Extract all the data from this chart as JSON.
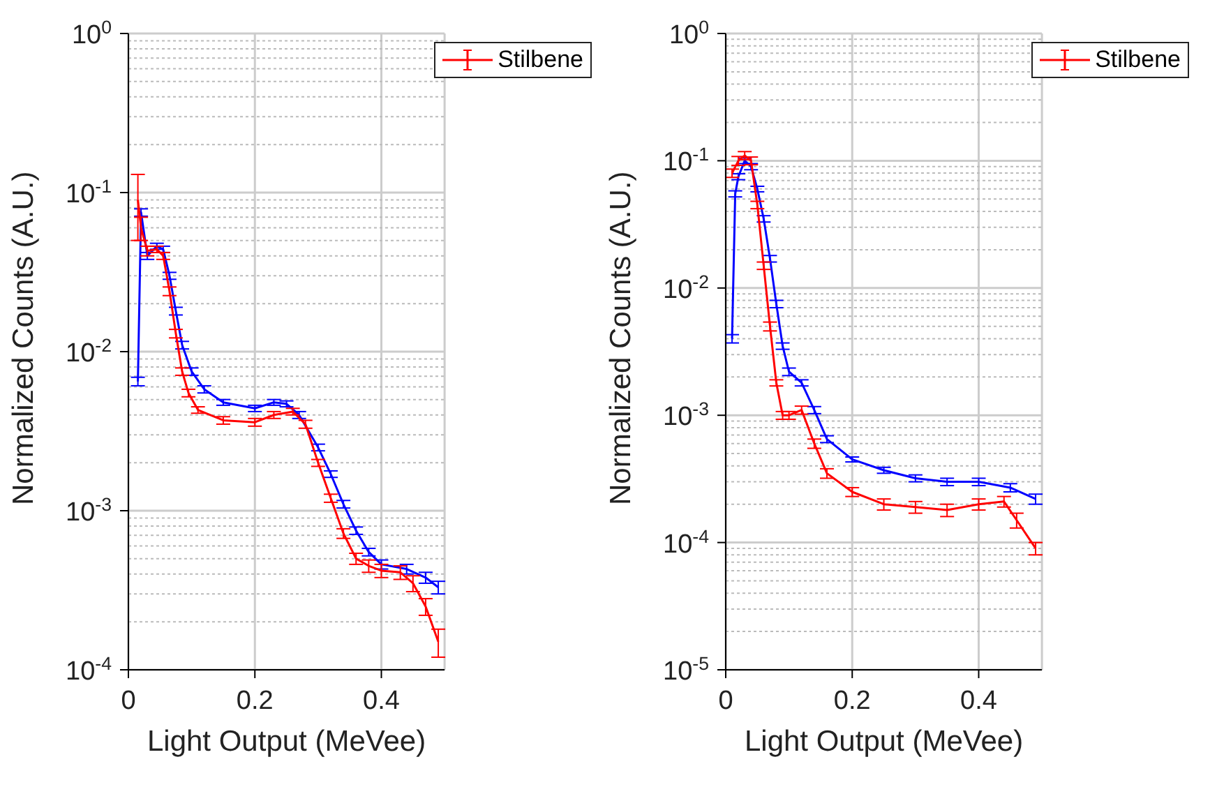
{
  "chart_data": [
    {
      "type": "line",
      "xlabel": "Light Output (MeVee)",
      "ylabel": "Normalized Counts (A.U.)",
      "log": "y",
      "grid": true,
      "legend": "top right",
      "marker": "none",
      "line_style": "solid",
      "xlim": [
        0,
        0.5
      ],
      "xticks": [
        0,
        0.2,
        0.4
      ],
      "ylim": [
        0.0001,
        1
      ],
      "yticks": [
        {
          "value": 0.0001,
          "label": "10$^{-4}$"
        },
        {
          "value": 0.001,
          "label": "10$^{-3}$"
        },
        {
          "value": 0.01,
          "label": "10$^{-2}$"
        },
        {
          "value": 0.1,
          "label": "10$^{-1}$"
        },
        {
          "value": 1,
          "label": "10$^{0}$"
        }
      ],
      "series": [
        {
          "color": "#0000ff",
          "x": [
            0.015,
            0.02,
            0.03,
            0.045,
            0.055,
            0.065,
            0.075,
            0.085,
            0.1,
            0.12,
            0.15,
            0.2,
            0.23,
            0.25,
            0.27,
            0.3,
            0.32,
            0.34,
            0.36,
            0.38,
            0.4,
            0.44,
            0.47,
            0.49
          ],
          "values": [
            0.0065,
            0.075,
            0.04,
            0.046,
            0.044,
            0.03,
            0.018,
            0.011,
            0.0075,
            0.0058,
            0.0048,
            0.0044,
            0.0048,
            0.0047,
            0.004,
            0.0025,
            0.0017,
            0.0011,
            0.00075,
            0.00055,
            0.00046,
            0.00043,
            0.00038,
            0.00033
          ],
          "errors": [
            0.0004,
            0.004,
            0.002,
            0.002,
            0.002,
            0.0015,
            0.001,
            0.0006,
            0.0004,
            0.0003,
            0.0002,
            0.0002,
            0.0002,
            0.0002,
            0.0002,
            0.00012,
            8e-05,
            6e-05,
            4e-05,
            3e-05,
            3e-05,
            3e-05,
            3e-05,
            3e-05
          ]
        },
        {
          "name": "Stilbene",
          "color": "#ff0000",
          "x": [
            0.015,
            0.02,
            0.03,
            0.045,
            0.055,
            0.065,
            0.075,
            0.085,
            0.095,
            0.11,
            0.15,
            0.2,
            0.23,
            0.26,
            0.28,
            0.3,
            0.32,
            0.34,
            0.36,
            0.38,
            0.4,
            0.43,
            0.45,
            0.47,
            0.49
          ],
          "values": [
            0.09,
            0.06,
            0.043,
            0.044,
            0.04,
            0.024,
            0.013,
            0.0075,
            0.0055,
            0.0043,
            0.0037,
            0.0036,
            0.004,
            0.0042,
            0.0035,
            0.002,
            0.0012,
            0.00072,
            0.0005,
            0.00045,
            0.00042,
            0.00041,
            0.00035,
            0.00025,
            0.00015
          ],
          "errors": [
            0.04,
            0.01,
            0.003,
            0.002,
            0.002,
            0.0015,
            0.0008,
            0.0004,
            0.0003,
            0.0002,
            0.0002,
            0.0002,
            0.0002,
            0.0002,
            0.0002,
            0.0001,
            7e-05,
            5e-05,
            4e-05,
            4e-05,
            4e-05,
            4e-05,
            4e-05,
            3e-05,
            3e-05
          ]
        }
      ]
    },
    {
      "type": "line",
      "xlabel": "Light Output (MeVee)",
      "ylabel": "Normalized Counts (A.U.)",
      "log": "y",
      "grid": true,
      "legend": "top right",
      "marker": "none",
      "line_style": "solid",
      "xlim": [
        0,
        0.5
      ],
      "xticks": [
        0,
        0.2,
        0.4
      ],
      "ylim": [
        1e-05,
        1
      ],
      "yticks": [
        {
          "value": 1e-05,
          "label": "10$^{-5}$"
        },
        {
          "value": 0.0001,
          "label": "10$^{-4}$"
        },
        {
          "value": 0.001,
          "label": "10$^{-3}$"
        },
        {
          "value": 0.01,
          "label": "10$^{-2}$"
        },
        {
          "value": 0.1,
          "label": "10$^{-1}$"
        },
        {
          "value": 1,
          "label": "10$^{0}$"
        }
      ],
      "series": [
        {
          "color": "#0000ff",
          "x": [
            0.01,
            0.015,
            0.02,
            0.03,
            0.04,
            0.05,
            0.06,
            0.07,
            0.08,
            0.09,
            0.1,
            0.12,
            0.14,
            0.16,
            0.2,
            0.25,
            0.3,
            0.35,
            0.4,
            0.45,
            0.49
          ],
          "values": [
            0.004,
            0.055,
            0.075,
            0.1,
            0.09,
            0.06,
            0.035,
            0.017,
            0.0075,
            0.0035,
            0.0022,
            0.0018,
            0.0011,
            0.00065,
            0.00045,
            0.00037,
            0.00032,
            0.0003,
            0.0003,
            0.00027,
            0.00022
          ],
          "errors": [
            0.0003,
            0.003,
            0.004,
            0.005,
            0.005,
            0.003,
            0.002,
            0.001,
            0.0005,
            0.0002,
            0.00015,
            0.0001,
            7e-05,
            4e-05,
            2e-05,
            2e-05,
            2e-05,
            2e-05,
            2e-05,
            2e-05,
            2e-05
          ]
        },
        {
          "name": "Stilbene",
          "color": "#ff0000",
          "x": [
            0.01,
            0.02,
            0.03,
            0.04,
            0.05,
            0.06,
            0.07,
            0.08,
            0.09,
            0.1,
            0.12,
            0.14,
            0.16,
            0.2,
            0.25,
            0.3,
            0.35,
            0.4,
            0.44,
            0.46,
            0.49
          ],
          "values": [
            0.08,
            0.1,
            0.11,
            0.1,
            0.045,
            0.015,
            0.005,
            0.0018,
            0.001,
            0.001,
            0.0011,
            0.0006,
            0.00035,
            0.00025,
            0.0002,
            0.00019,
            0.00018,
            0.0002,
            0.00021,
            0.00015,
            9e-05
          ],
          "errors": [
            0.006,
            0.008,
            0.008,
            0.007,
            0.003,
            0.001,
            0.0004,
            0.0001,
            7e-05,
            7e-05,
            8e-05,
            5e-05,
            3e-05,
            2e-05,
            2e-05,
            2e-05,
            2e-05,
            2e-05,
            2e-05,
            2e-05,
            1e-05
          ]
        }
      ]
    }
  ]
}
